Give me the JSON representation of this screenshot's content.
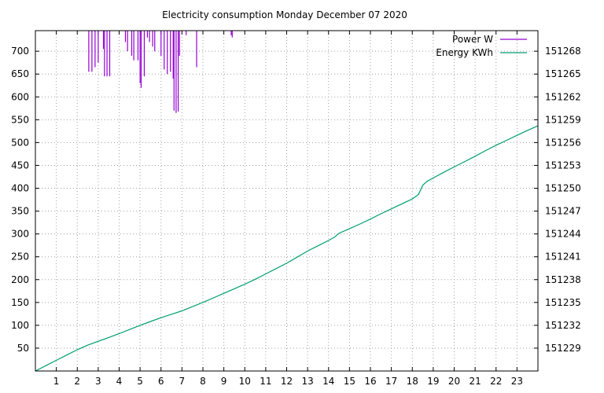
{
  "chart_data": {
    "type": "line",
    "title": "Electricity consumption Monday December 07 2020",
    "xlabel": "",
    "ylabel": "",
    "y2label": "",
    "grid": true,
    "legend_position": "top-right",
    "xlim": [
      0,
      24
    ],
    "x_ticks": [
      1,
      2,
      3,
      4,
      5,
      6,
      7,
      8,
      9,
      10,
      11,
      12,
      13,
      14,
      15,
      16,
      17,
      18,
      19,
      20,
      21,
      22,
      23
    ],
    "ylim": [
      0,
      745
    ],
    "y_ticks": [
      50,
      100,
      150,
      200,
      250,
      300,
      350,
      400,
      450,
      500,
      550,
      600,
      650,
      700
    ],
    "y2lim": [
      151226,
      151270.7
    ],
    "y2_ticks": [
      151229,
      151232,
      151235,
      151238,
      151241,
      151244,
      151247,
      151250,
      151253,
      151256,
      151259,
      151262,
      151265,
      151268
    ],
    "series": [
      {
        "name": "Power W",
        "axis": "left",
        "style": "impulses",
        "color": "#9400d3",
        "points": [
          [
            2.55,
            655
          ],
          [
            2.62,
            745
          ],
          [
            2.7,
            655
          ],
          [
            2.78,
            745
          ],
          [
            2.85,
            665
          ],
          [
            2.92,
            745
          ],
          [
            3.0,
            675
          ],
          [
            3.08,
            745
          ],
          [
            3.2,
            745
          ],
          [
            3.25,
            705
          ],
          [
            3.3,
            645
          ],
          [
            3.38,
            745
          ],
          [
            3.42,
            645
          ],
          [
            3.5,
            745
          ],
          [
            3.55,
            645
          ],
          [
            3.62,
            745
          ],
          [
            4.25,
            745
          ],
          [
            4.3,
            720
          ],
          [
            4.4,
            700
          ],
          [
            4.5,
            745
          ],
          [
            4.6,
            690
          ],
          [
            4.7,
            680
          ],
          [
            4.8,
            745
          ],
          [
            4.9,
            680
          ],
          [
            5.0,
            630
          ],
          [
            5.05,
            620
          ],
          [
            5.12,
            745
          ],
          [
            5.2,
            645
          ],
          [
            5.28,
            745
          ],
          [
            5.35,
            730
          ],
          [
            5.45,
            720
          ],
          [
            5.52,
            745
          ],
          [
            5.6,
            710
          ],
          [
            5.7,
            700
          ],
          [
            5.8,
            745
          ],
          [
            5.9,
            745
          ],
          [
            6.0,
            690
          ],
          [
            6.05,
            745
          ],
          [
            6.15,
            660
          ],
          [
            6.22,
            745
          ],
          [
            6.3,
            650
          ],
          [
            6.38,
            745
          ],
          [
            6.45,
            655
          ],
          [
            6.5,
            745
          ],
          [
            6.58,
            640
          ],
          [
            6.62,
            570
          ],
          [
            6.68,
            745
          ],
          [
            6.72,
            565
          ],
          [
            6.78,
            745
          ],
          [
            6.82,
            568
          ],
          [
            6.88,
            690
          ],
          [
            6.95,
            745
          ],
          [
            7.1,
            745
          ],
          [
            7.2,
            735
          ],
          [
            7.3,
            745
          ],
          [
            7.7,
            665
          ],
          [
            7.75,
            745
          ],
          [
            9.35,
            735
          ],
          [
            9.4,
            730
          ],
          [
            9.55,
            745
          ]
        ]
      },
      {
        "name": "Energy KWh",
        "axis": "right",
        "style": "lines",
        "color": "#009e73",
        "points": [
          [
            0,
            151226.0
          ],
          [
            0.5,
            151226.7
          ],
          [
            1,
            151227.4
          ],
          [
            1.5,
            151228.1
          ],
          [
            2,
            151228.8
          ],
          [
            2.5,
            151229.4
          ],
          [
            3,
            151229.9
          ],
          [
            3.5,
            151230.4
          ],
          [
            4,
            151230.9
          ],
          [
            4.5,
            151231.45
          ],
          [
            5,
            151232.0
          ],
          [
            5.5,
            151232.5
          ],
          [
            6,
            151233.0
          ],
          [
            6.5,
            151233.45
          ],
          [
            7,
            151233.9
          ],
          [
            7.5,
            151234.45
          ],
          [
            8,
            151235.0
          ],
          [
            8.5,
            151235.6
          ],
          [
            9,
            151236.2
          ],
          [
            9.5,
            151236.8
          ],
          [
            10,
            151237.4
          ],
          [
            10.5,
            151238.05
          ],
          [
            11,
            151238.75
          ],
          [
            11.5,
            151239.45
          ],
          [
            12,
            151240.15
          ],
          [
            12.5,
            151240.95
          ],
          [
            13,
            151241.75
          ],
          [
            13.5,
            151242.45
          ],
          [
            14,
            151243.15
          ],
          [
            14.3,
            151243.6
          ],
          [
            14.5,
            151244.1
          ],
          [
            15,
            151244.7
          ],
          [
            15.5,
            151245.3
          ],
          [
            16,
            151245.95
          ],
          [
            16.5,
            151246.65
          ],
          [
            17,
            151247.3
          ],
          [
            17.5,
            151247.95
          ],
          [
            18,
            151248.6
          ],
          [
            18.3,
            151249.2
          ],
          [
            18.5,
            151250.4
          ],
          [
            18.7,
            151250.9
          ],
          [
            19,
            151251.35
          ],
          [
            19.5,
            151252.1
          ],
          [
            20,
            151252.8
          ],
          [
            20.5,
            151253.5
          ],
          [
            21,
            151254.2
          ],
          [
            21.5,
            151254.95
          ],
          [
            22,
            151255.65
          ],
          [
            22.5,
            151256.3
          ],
          [
            23,
            151256.95
          ],
          [
            23.5,
            151257.6
          ],
          [
            24,
            151258.2
          ]
        ]
      }
    ]
  }
}
